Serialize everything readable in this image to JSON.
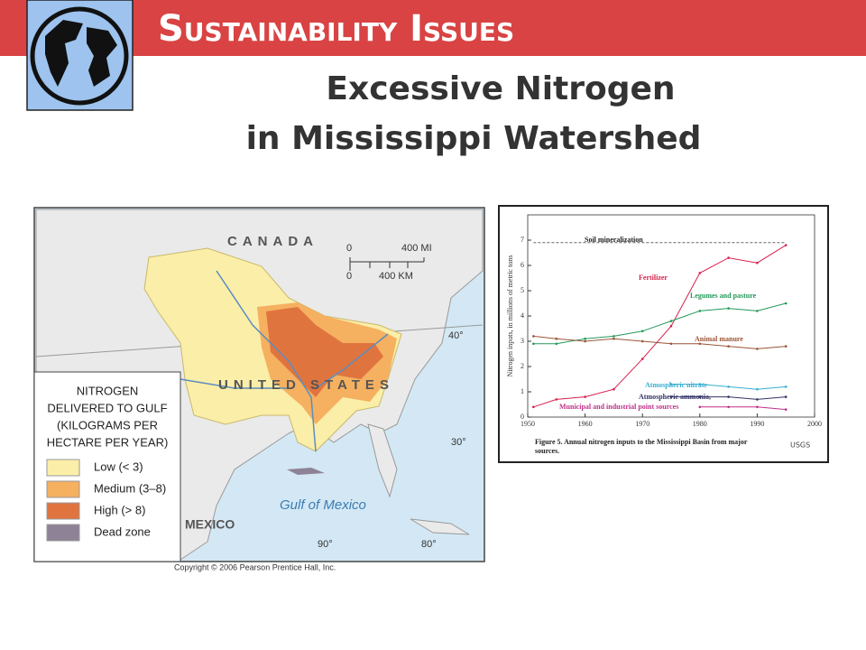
{
  "header": {
    "title": "Sustainability Issues",
    "heading_lines": [
      "Excessive Nitrogen",
      "in Mississippi Watershed"
    ]
  },
  "map": {
    "labels": {
      "canada": "CANADA",
      "us": "UNITED STATES",
      "mexico": "MEXICO",
      "gulf": "Gulf of Mexico"
    },
    "scale": [
      "0",
      "400 MI",
      "0",
      "400 KM"
    ],
    "coordinates": [
      "40°",
      "30°",
      "90°",
      "80°"
    ],
    "legend_title": [
      "NITROGEN",
      "DELIVERED TO GULF",
      "(KILOGRAMS PER",
      "HECTARE PER YEAR)"
    ],
    "legend": [
      {
        "label": "Low (< 3)",
        "color": "#fbeea8"
      },
      {
        "label": "Medium (3–8)",
        "color": "#f5b060"
      },
      {
        "label": "High (> 8)",
        "color": "#e0743f"
      },
      {
        "label": "Dead zone",
        "color": "#8e8296"
      }
    ],
    "copyright": "Copyright © 2006 Pearson Prentice Hall, Inc."
  },
  "chart_data": {
    "type": "line",
    "y_label": "Nitrogen inputs, in millions of metric tons",
    "caption": [
      "Figure 5.  Annual nitrogen inputs to the Mississippi Basin from major",
      "sources."
    ],
    "credit": "USGS",
    "x": [
      1951,
      1955,
      1960,
      1965,
      1970,
      1975,
      1980,
      1985,
      1990,
      1995
    ],
    "xlim": [
      1950,
      2000
    ],
    "xticks": [
      1950,
      1960,
      1970,
      1980,
      1990,
      2000
    ],
    "ylim": [
      0,
      8
    ],
    "yticks": [
      0,
      1,
      2,
      3,
      4,
      5,
      6,
      7
    ],
    "series": [
      {
        "name": "Soil mineralization",
        "color": "#666666",
        "values": [
          6.9,
          6.9,
          6.9,
          6.9,
          6.9,
          6.9,
          6.9,
          6.9,
          6.9,
          6.9
        ]
      },
      {
        "name": "Fertilizer",
        "color": "#d8204c",
        "values": [
          0.4,
          0.7,
          0.8,
          1.1,
          2.3,
          3.6,
          5.7,
          6.3,
          6.1,
          6.8
        ]
      },
      {
        "name": "Legumes and pasture",
        "color": "#23995a",
        "values": [
          2.9,
          2.9,
          3.1,
          3.2,
          3.4,
          3.8,
          4.2,
          4.3,
          4.2,
          4.5
        ]
      },
      {
        "name": "Animal manure",
        "color": "#9a5536",
        "values": [
          3.2,
          3.1,
          3.0,
          3.1,
          3.0,
          2.9,
          2.9,
          2.8,
          2.7,
          2.8
        ]
      },
      {
        "name": "Atmospheric nitrate",
        "color": "#37aed0",
        "values": [
          null,
          null,
          null,
          null,
          null,
          1.3,
          1.3,
          1.2,
          1.1,
          1.2
        ]
      },
      {
        "name": "Atmospheric ammonia,",
        "color": "#333366",
        "values": [
          null,
          null,
          null,
          null,
          null,
          0.8,
          0.8,
          0.8,
          0.7,
          0.8
        ]
      },
      {
        "name": "Municipal and industrial point sources",
        "color": "#c0308a",
        "values": [
          null,
          null,
          null,
          null,
          null,
          null,
          0.4,
          0.4,
          0.4,
          0.3
        ]
      }
    ]
  }
}
